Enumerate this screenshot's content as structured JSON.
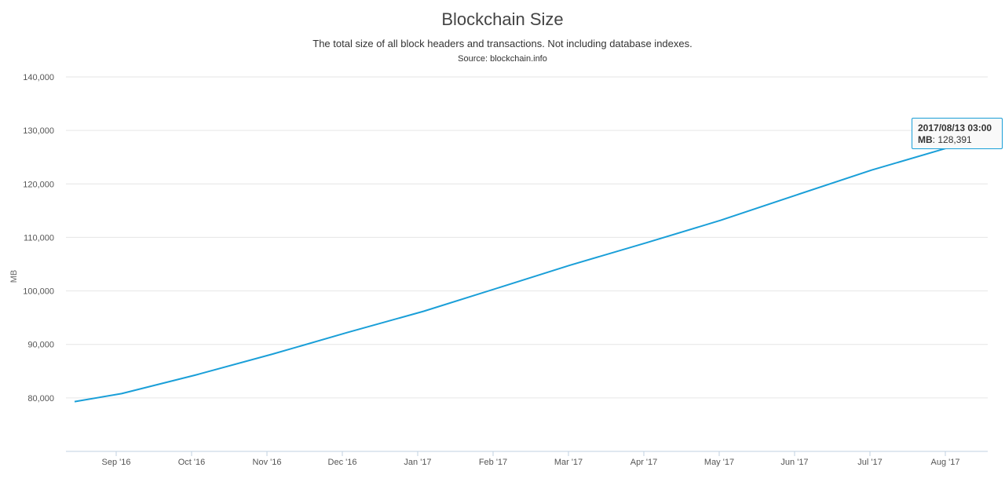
{
  "chart_data": {
    "type": "line",
    "title": "Blockchain Size",
    "subtitle": "The total size of all block headers and transactions. Not including database indexes.",
    "source": "Source: blockchain.info",
    "xlabel": "",
    "ylabel": "MB",
    "x_tick_labels": [
      "Sep '16",
      "Oct '16",
      "Nov '16",
      "Dec '16",
      "Jan '17",
      "Feb '17",
      "Mar '17",
      "Apr '17",
      "May '17",
      "Jun '17",
      "Jul '17",
      "Aug '17"
    ],
    "y_tick_labels": [
      "80,000",
      "90,000",
      "100,000",
      "110,000",
      "120,000",
      "130,000",
      "140,000"
    ],
    "ylim": [
      70000,
      140000
    ],
    "xlim": [
      "2016-08-13",
      "2017-08-13"
    ],
    "grid": true,
    "line_color": "#1a9fd8",
    "series": [
      {
        "name": "MB",
        "points": [
          {
            "x": "2016-08-13",
            "y": 79300
          },
          {
            "x": "2016-09-01",
            "y": 80800
          },
          {
            "x": "2016-10-01",
            "y": 84300
          },
          {
            "x": "2016-11-01",
            "y": 88200
          },
          {
            "x": "2016-12-01",
            "y": 92200
          },
          {
            "x": "2017-01-01",
            "y": 96200
          },
          {
            "x": "2017-02-01",
            "y": 100700
          },
          {
            "x": "2017-03-01",
            "y": 104800
          },
          {
            "x": "2017-04-01",
            "y": 109000
          },
          {
            "x": "2017-05-01",
            "y": 113200
          },
          {
            "x": "2017-06-01",
            "y": 118000
          },
          {
            "x": "2017-07-01",
            "y": 122600
          },
          {
            "x": "2017-08-01",
            "y": 126800
          },
          {
            "x": "2017-08-13",
            "y": 128391
          }
        ]
      }
    ],
    "tooltip": {
      "date": "2017/08/13 03:00",
      "series_label": "MB",
      "value": "128,391"
    }
  }
}
